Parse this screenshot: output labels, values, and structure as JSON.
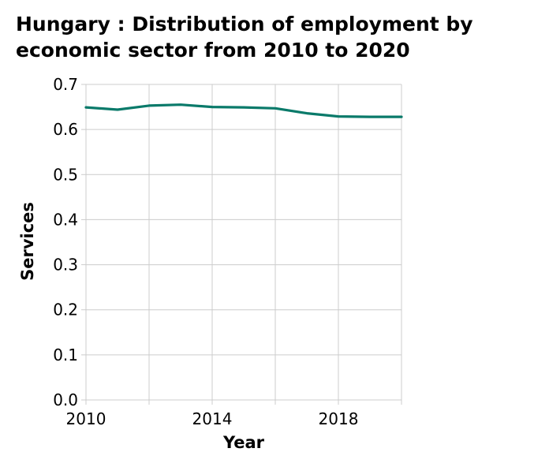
{
  "chart_data": {
    "type": "line",
    "title_lines": [
      "Hungary : Distribution of employment by",
      "economic sector from 2010 to 2020"
    ],
    "xlabel": "Year",
    "ylabel": "Services",
    "xlim": [
      2010,
      2020
    ],
    "ylim": [
      0,
      0.7
    ],
    "grid": true,
    "x_ticks": [
      2010,
      2014,
      2018
    ],
    "y_ticks": [
      "0.0",
      "0.1",
      "0.2",
      "0.3",
      "0.4",
      "0.5",
      "0.6",
      "0.7"
    ],
    "line_color": "#0a7a6a",
    "series": [
      {
        "x": [
          2010,
          2011,
          2012,
          2013,
          2014,
          2015,
          2016,
          2017,
          2018,
          2019,
          2020
        ],
        "values": [
          0.649,
          0.644,
          0.653,
          0.655,
          0.65,
          0.649,
          0.647,
          0.636,
          0.629,
          0.628,
          0.628
        ]
      }
    ]
  }
}
